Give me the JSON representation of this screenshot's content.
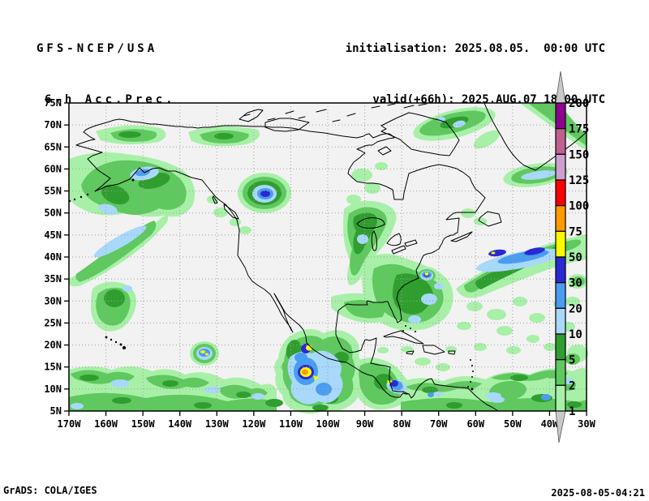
{
  "header": {
    "model": "GFS-NCEP/USA",
    "product": "6-h Acc.Prec.",
    "init_line": "initialisation: 2025.08.05.  00:00 UTC",
    "valid_line": "valid(+66h): 2025.AUG.07 18:00 UTC"
  },
  "footer": {
    "left": "GrADS: COLA/IGES",
    "right": "2025-08-05-04:21"
  },
  "map": {
    "lat_labels": [
      "75N",
      "70N",
      "65N",
      "60N",
      "55N",
      "50N",
      "45N",
      "40N",
      "35N",
      "30N",
      "25N",
      "20N",
      "15N",
      "10N",
      "5N"
    ],
    "lon_labels": [
      "170W",
      "160W",
      "150W",
      "140W",
      "130W",
      "120W",
      "110W",
      "100W",
      "90W",
      "80W",
      "70W",
      "60W",
      "50W",
      "40W",
      "30W"
    ]
  },
  "colorbar": {
    "boundary_labels": [
      "200",
      "175",
      "150",
      "125",
      "100",
      "75",
      "50",
      "30",
      "20",
      "10",
      "5",
      "2",
      "1"
    ],
    "segment_colors_top_to_bottom": [
      "#8e008e",
      "#c06090",
      "#cf9fd0",
      "#fa0000",
      "#ff9b00",
      "#fafa00",
      "#2a2ad2",
      "#4a9cf0",
      "#a8d8fa",
      "#2f9e2f",
      "#5fc85f",
      "#a8f0a8"
    ],
    "arrow_color": "#c9c9c9"
  }
}
